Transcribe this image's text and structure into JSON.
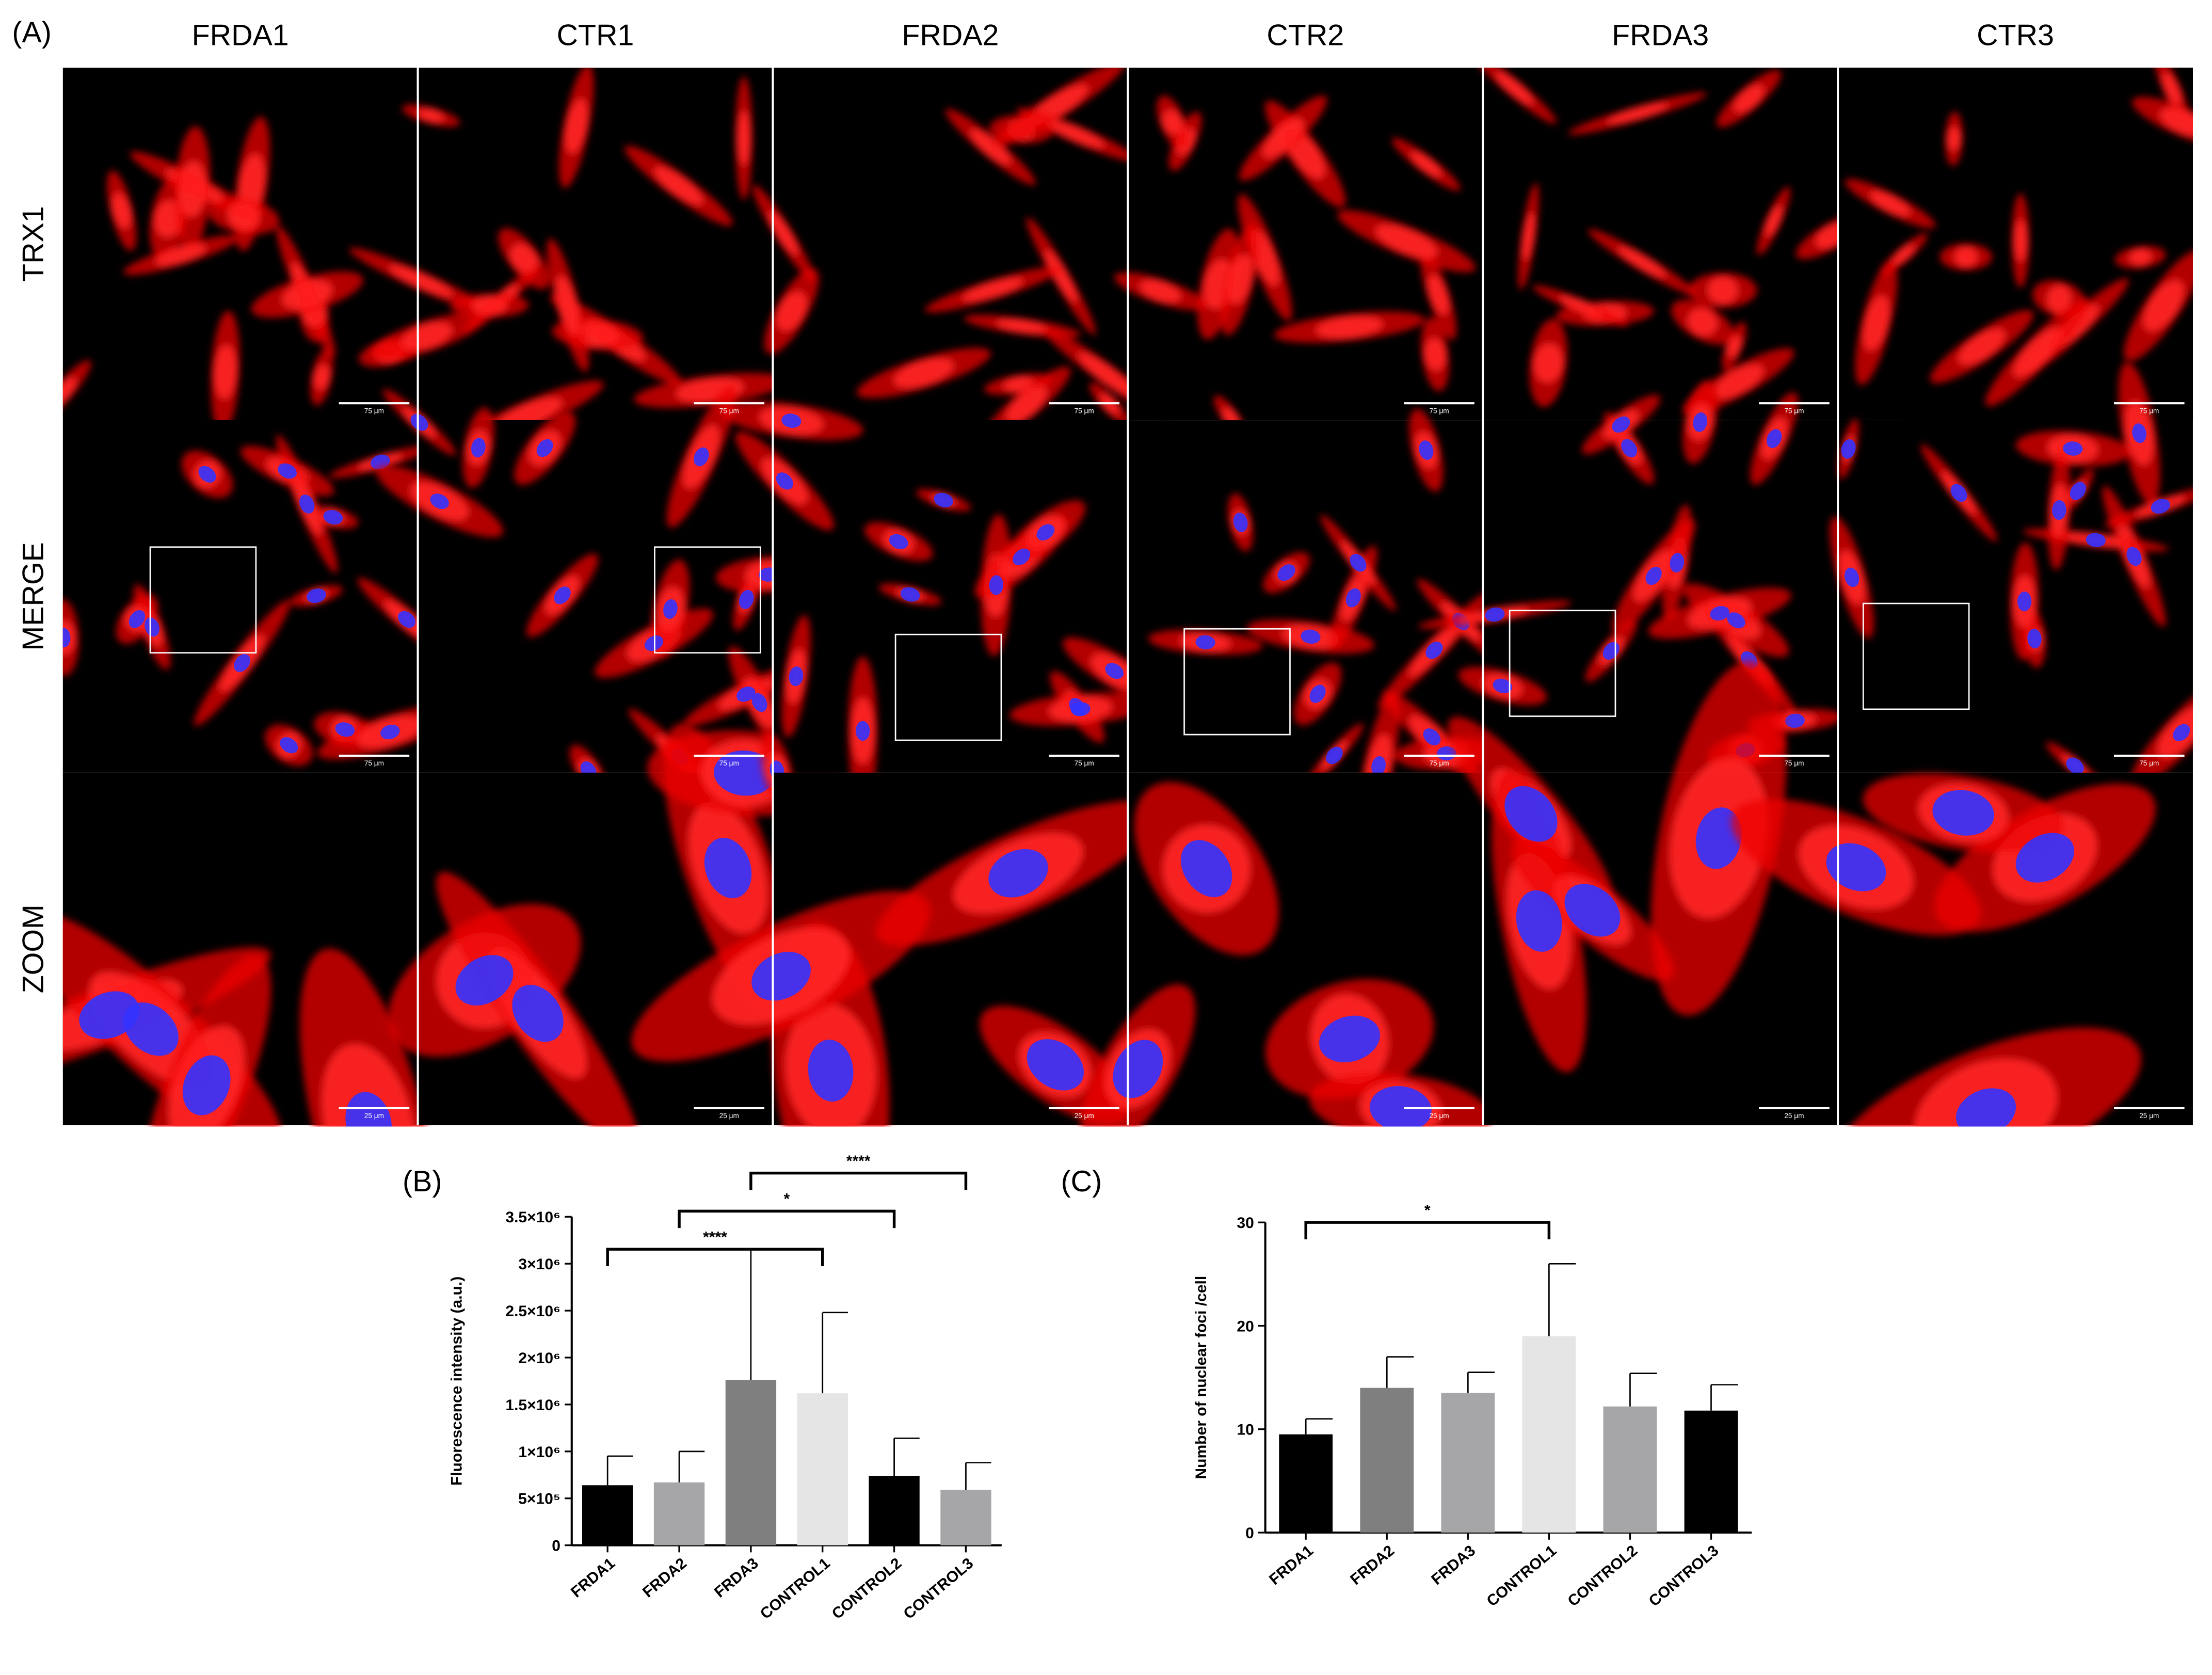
{
  "panel_a": {
    "label": "(A)",
    "columns": [
      "FRDA1",
      "CTR1",
      "FRDA2",
      "CTR2",
      "FRDA3",
      "CTR3"
    ],
    "rows": [
      "TRX1",
      "MERGE",
      "ZOOM"
    ],
    "scale_labels": [
      "75 μm",
      "75 μm",
      "25 μm"
    ]
  },
  "chart_data": [
    {
      "type": "bar",
      "panel_label": "(B)",
      "y_label": "Fluorescence intensity (a.u.)",
      "categories": [
        "FRDA1",
        "FRDA2",
        "FRDA3",
        "CONTROL1",
        "CONTROL2",
        "CONTROL3"
      ],
      "values": [
        640000,
        670000,
        1760000,
        1620000,
        740000,
        590000
      ],
      "errors": [
        310000,
        330000,
        1400000,
        860000,
        400000,
        290000
      ],
      "colors": [
        "#000000",
        "#a6a6a8",
        "#7f7f7f",
        "#e5e5e5",
        "#000000",
        "#a6a6a8"
      ],
      "ylim": [
        0,
        3500000
      ],
      "yticks": [
        0,
        {
          "value": 500000,
          "label": "5×10⁵"
        },
        {
          "value": 1000000,
          "label": "1×10⁶"
        },
        {
          "value": 1500000,
          "label": "1.5×10⁶"
        },
        {
          "value": 2000000,
          "label": "2×10⁶"
        },
        {
          "value": 2500000,
          "label": "2.5×10⁶"
        },
        {
          "value": 3000000,
          "label": "3×10⁶"
        },
        {
          "value": 3500000,
          "label": "3.5×10⁶"
        }
      ],
      "annotations": [
        {
          "text": "****",
          "from": "FRDA1",
          "to": "CONTROL1"
        },
        {
          "text": "*",
          "from": "FRDA2",
          "to": "CONTROL2"
        },
        {
          "text": "****",
          "from": "FRDA3",
          "to": "CONTROL3"
        }
      ]
    },
    {
      "type": "bar",
      "panel_label": "(C)",
      "y_label": "Number of nuclear foci /cell",
      "categories": [
        "FRDA1",
        "FRDA2",
        "FRDA3",
        "CONTROL1",
        "CONTROL2",
        "CONTROL3"
      ],
      "values": [
        9.5,
        14,
        13.5,
        19,
        12.2,
        11.8
      ],
      "errors": [
        1.5,
        3,
        2,
        7,
        3.2,
        2.5
      ],
      "colors": [
        "#000000",
        "#7f7f7f",
        "#a6a6a8",
        "#e5e5e5",
        "#a6a6a8",
        "#000000"
      ],
      "ylim": [
        0,
        30
      ],
      "yticks": [
        0,
        10,
        20,
        30
      ],
      "annotations": [
        {
          "text": "*",
          "from": "FRDA1",
          "to": "CONTROL1"
        }
      ]
    }
  ]
}
